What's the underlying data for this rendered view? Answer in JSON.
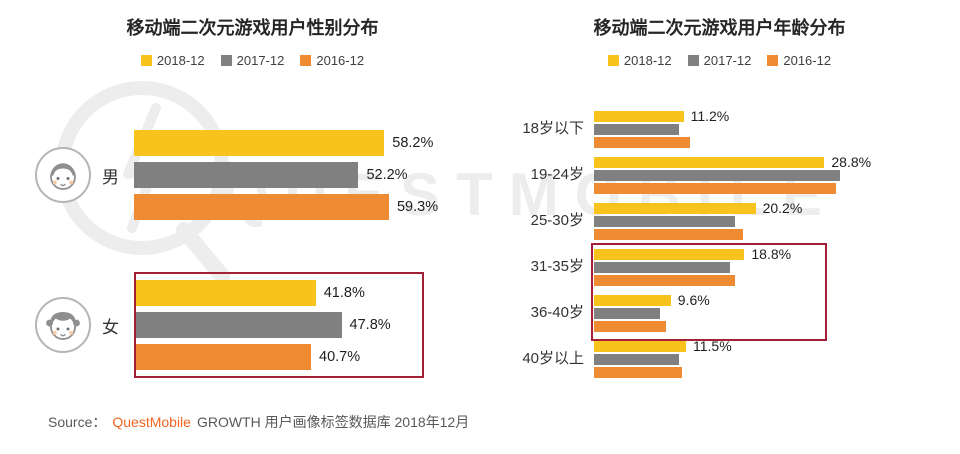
{
  "watermark": {
    "text": "QUESTMOBILE"
  },
  "colors": {
    "series_2018": "#F7C31C",
    "series_2017": "#808080",
    "series_2016": "#EF8B33",
    "highlight_box": "#A32036",
    "brand_orange": "#F26522",
    "watermark_gray": "#EDEDED"
  },
  "icons": {
    "male": "male-avatar-icon",
    "female": "female-avatar-icon"
  },
  "chart_data": [
    {
      "type": "bar",
      "orientation": "horizontal",
      "title": "移动端二次元游戏用户性别分布",
      "legend_position": "top",
      "categories": [
        "男",
        "女"
      ],
      "series": [
        {
          "name": "2018-12",
          "color": "#F7C31C",
          "values": [
            58.2,
            41.8
          ],
          "labels_shown": true
        },
        {
          "name": "2017-12",
          "color": "#808080",
          "values": [
            52.2,
            47.8
          ],
          "labels_shown": true
        },
        {
          "name": "2016-12",
          "color": "#EF8B33",
          "values": [
            59.3,
            40.7
          ],
          "labels_shown": true
        }
      ],
      "value_suffix": "%",
      "data_labels": "all_bars",
      "highlight_box_categories": [
        "女"
      ],
      "xlim": [
        0,
        65
      ]
    },
    {
      "type": "bar",
      "orientation": "horizontal",
      "title": "移动端二次元游戏用户年龄分布",
      "legend_position": "top",
      "categories": [
        "18岁以下",
        "19-24岁",
        "25-30岁",
        "31-35岁",
        "36-40岁",
        "40岁以上"
      ],
      "series": [
        {
          "name": "2018-12",
          "color": "#F7C31C",
          "values": [
            11.2,
            28.8,
            20.2,
            18.8,
            9.6,
            11.5
          ],
          "labels_shown": true
        },
        {
          "name": "2017-12",
          "color": "#808080",
          "values": [
            10.6,
            30.8,
            17.6,
            17.0,
            8.2,
            10.6
          ],
          "labels_shown": false
        },
        {
          "name": "2016-12",
          "color": "#EF8B33",
          "values": [
            12.0,
            30.2,
            18.6,
            17.6,
            9.0,
            11.0
          ],
          "labels_shown": false
        }
      ],
      "value_suffix": "%",
      "data_labels": "first_series_only",
      "highlight_box_categories": [
        "31-35岁",
        "36-40岁"
      ],
      "xlim": [
        0,
        35
      ]
    }
  ],
  "footer": {
    "source_label": "Source：",
    "brand": "QuestMobile",
    "text": "GROWTH 用户画像标签数据库 2018年12月"
  }
}
